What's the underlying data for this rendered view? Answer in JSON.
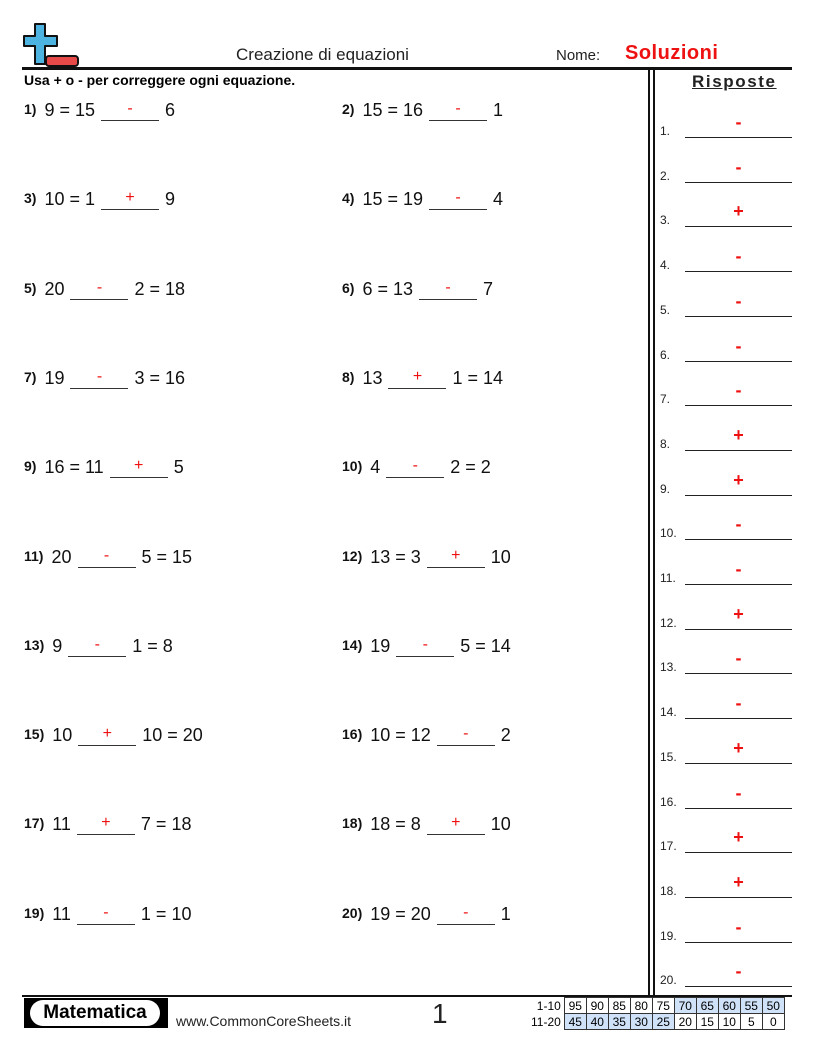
{
  "header": {
    "title": "Creazione di equazioni",
    "name_label": "Nome:",
    "name_value": "Soluzioni",
    "instructions": "Usa + o - per correggere ogni equazione."
  },
  "answers": {
    "title": "Risposte",
    "items": [
      {
        "n": "1.",
        "v": "-"
      },
      {
        "n": "2.",
        "v": "-"
      },
      {
        "n": "3.",
        "v": "+"
      },
      {
        "n": "4.",
        "v": "-"
      },
      {
        "n": "5.",
        "v": "-"
      },
      {
        "n": "6.",
        "v": "-"
      },
      {
        "n": "7.",
        "v": "-"
      },
      {
        "n": "8.",
        "v": "+"
      },
      {
        "n": "9.",
        "v": "+"
      },
      {
        "n": "10.",
        "v": "-"
      },
      {
        "n": "11.",
        "v": "-"
      },
      {
        "n": "12.",
        "v": "+"
      },
      {
        "n": "13.",
        "v": "-"
      },
      {
        "n": "14.",
        "v": "-"
      },
      {
        "n": "15.",
        "v": "+"
      },
      {
        "n": "16.",
        "v": "-"
      },
      {
        "n": "17.",
        "v": "+"
      },
      {
        "n": "18.",
        "v": "+"
      },
      {
        "n": "19.",
        "v": "-"
      },
      {
        "n": "20.",
        "v": "-"
      }
    ]
  },
  "problems": [
    {
      "num": "1)",
      "before": "9 = 15",
      "op": "-",
      "after": "6"
    },
    {
      "num": "2)",
      "before": "15 = 16",
      "op": "-",
      "after": "1"
    },
    {
      "num": "3)",
      "before": "10 = 1",
      "op": "+",
      "after": "9"
    },
    {
      "num": "4)",
      "before": "15 = 19",
      "op": "-",
      "after": "4"
    },
    {
      "num": "5)",
      "before": "20",
      "op": "-",
      "after": "2 = 18"
    },
    {
      "num": "6)",
      "before": "6 = 13",
      "op": "-",
      "after": "7"
    },
    {
      "num": "7)",
      "before": "19",
      "op": "-",
      "after": "3 = 16"
    },
    {
      "num": "8)",
      "before": "13",
      "op": "+",
      "after": "1 = 14"
    },
    {
      "num": "9)",
      "before": "16 = 11",
      "op": "+",
      "after": "5"
    },
    {
      "num": "10)",
      "before": "4",
      "op": "-",
      "after": "2 = 2"
    },
    {
      "num": "11)",
      "before": "20",
      "op": "-",
      "after": "5 = 15"
    },
    {
      "num": "12)",
      "before": "13 = 3",
      "op": "+",
      "after": "10"
    },
    {
      "num": "13)",
      "before": "9",
      "op": "-",
      "after": "1 = 8"
    },
    {
      "num": "14)",
      "before": "19",
      "op": "-",
      "after": "5 = 14"
    },
    {
      "num": "15)",
      "before": "10",
      "op": "+",
      "after": "10 = 20"
    },
    {
      "num": "16)",
      "before": "10 = 12",
      "op": "-",
      "after": "2"
    },
    {
      "num": "17)",
      "before": "11",
      "op": "+",
      "after": "7 = 18"
    },
    {
      "num": "18)",
      "before": "18 = 8",
      "op": "+",
      "after": "10"
    },
    {
      "num": "19)",
      "before": "11",
      "op": "-",
      "after": "1 = 10"
    },
    {
      "num": "20)",
      "before": "19 = 20",
      "op": "-",
      "after": "1"
    }
  ],
  "footer": {
    "brand": "Matematica",
    "site": "www.CommonCoreSheets.it",
    "page": "1",
    "score": {
      "row1_label": "1-10",
      "row1": [
        "95",
        "90",
        "85",
        "80",
        "75",
        "70",
        "65",
        "60",
        "55",
        "50"
      ],
      "row2_label": "11-20",
      "row2": [
        "45",
        "40",
        "35",
        "30",
        "25",
        "20",
        "15",
        "10",
        "5",
        "0"
      ]
    }
  },
  "colors": {
    "answer": "#ee1111",
    "logo_plus": "#4db3e0",
    "logo_minus": "#e84a4a",
    "score_highlight": "#cfe2f8"
  }
}
